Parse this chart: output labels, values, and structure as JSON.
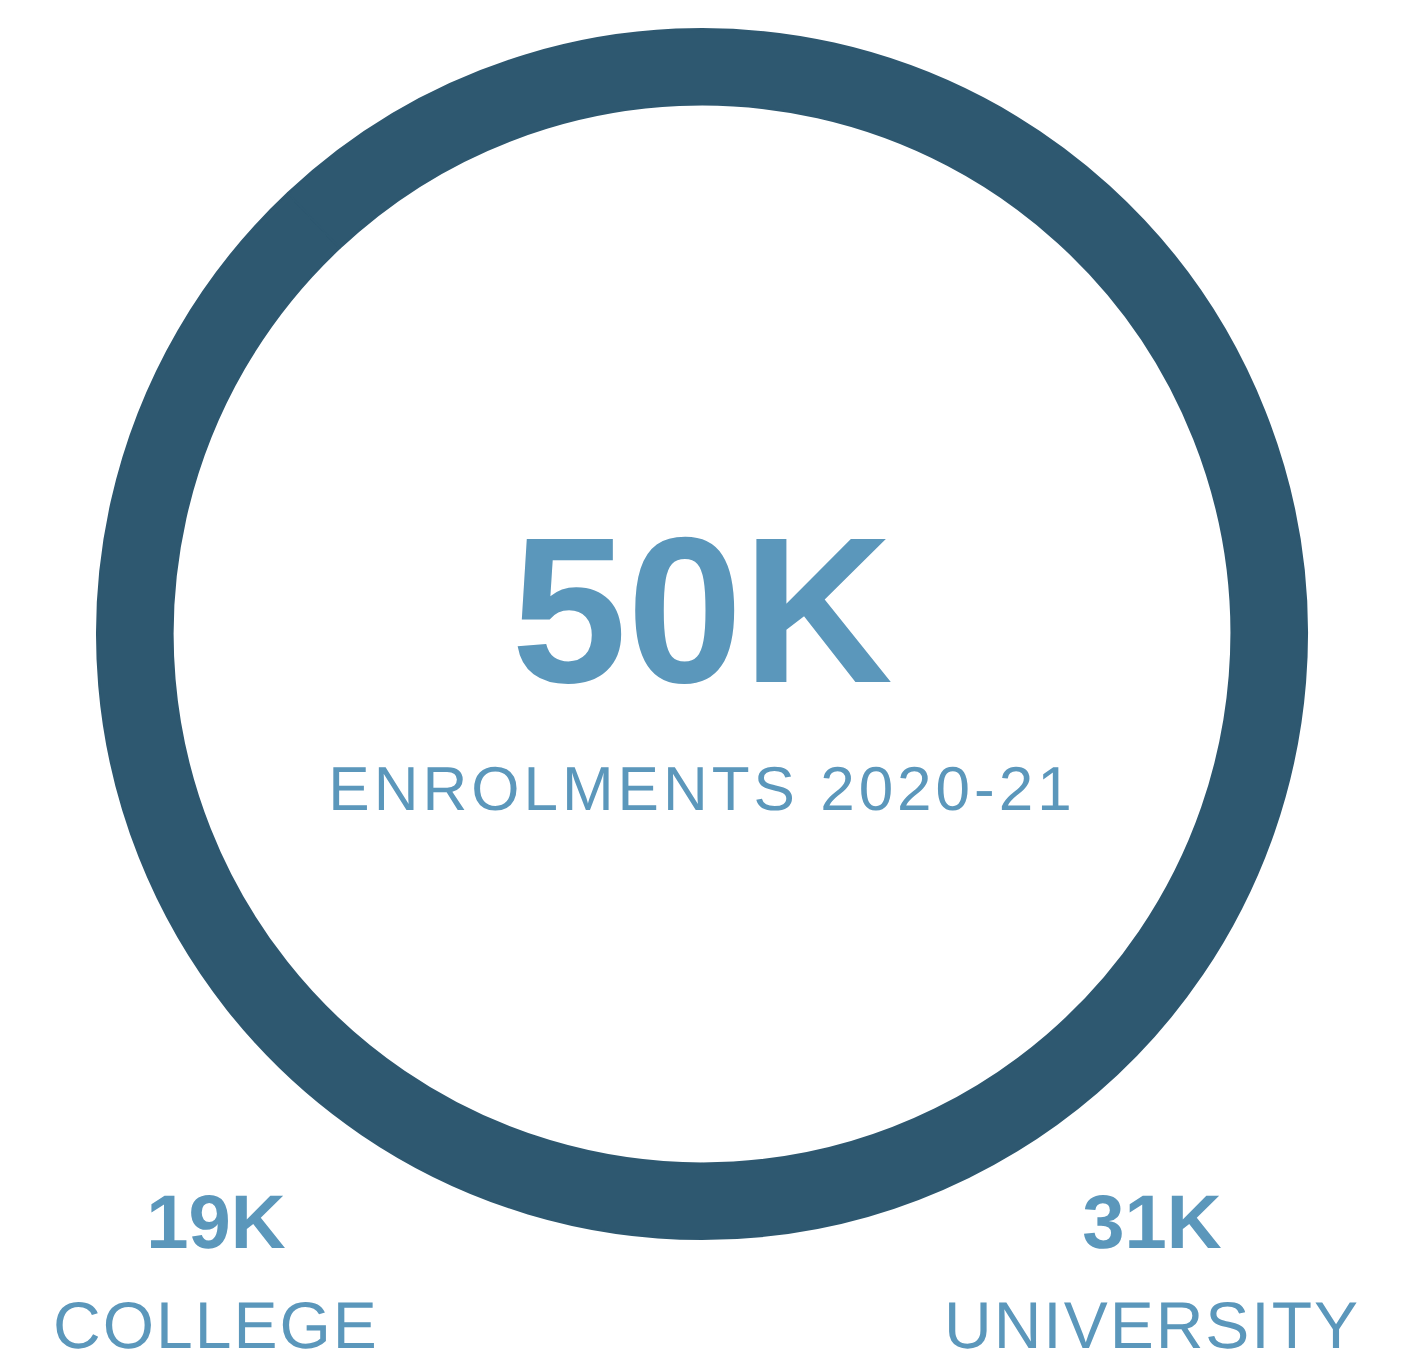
{
  "chart_data": {
    "type": "donut",
    "title": "ENROLMENTS 2020-21",
    "annotations": [
      "50K"
    ],
    "categories": [
      "COLLEGE",
      "UNIVERSITY"
    ],
    "values": [
      19,
      31
    ],
    "value_labels": [
      "19K",
      "31K"
    ],
    "colors": [
      "#2e5870",
      "#2e5870"
    ],
    "legend": false
  }
}
